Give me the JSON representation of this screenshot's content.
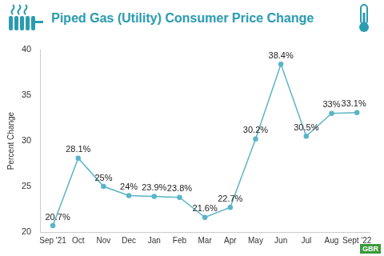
{
  "chart_data": {
    "type": "line",
    "title": "Piped Gas (Utility) Consumer Price Change",
    "y_label": "Percent Change",
    "categories": [
      "Sep '21",
      "Oct",
      "Nov",
      "Dec",
      "Jan",
      "Feb",
      "Mar",
      "Apr",
      "May",
      "Jun",
      "Jul",
      "Aug",
      "Sept '22"
    ],
    "values": [
      20.7,
      28.1,
      25,
      24,
      23.9,
      23.8,
      21.6,
      22.7,
      30.2,
      38.4,
      30.5,
      33,
      33.1
    ],
    "value_labels": [
      "20.7%",
      "28.1%",
      "25%",
      "24%",
      "23.9%",
      "23.8%",
      "21.6%",
      "22.7%",
      "30.2%",
      "38.4%",
      "30.5%",
      "33%",
      "33.1%"
    ],
    "data_labels": true,
    "color": "#5ab4c8",
    "marker": "circle",
    "line_style": "solid",
    "ylim": [
      20,
      40
    ],
    "yticks": [
      20,
      25,
      30,
      35,
      40
    ],
    "grid": false,
    "annotations": [
      "GBR"
    ]
  }
}
